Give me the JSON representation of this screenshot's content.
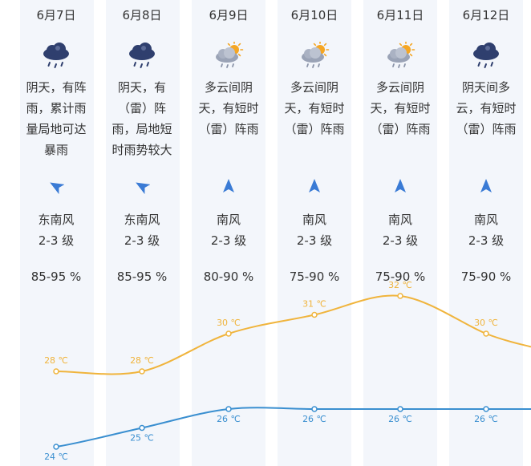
{
  "days": [
    {
      "date": "6月7日",
      "weather_icon": "rain-cloud-icon",
      "desc": "阴天，有阵雨，累计雨量局地可达暴雨",
      "wind_dir_icon": "wind-arrow-southeast-icon",
      "wind_dir": "东南风",
      "wind_level": "2-3 级",
      "humidity": "85-95 %"
    },
    {
      "date": "6月8日",
      "weather_icon": "rain-cloud-icon",
      "desc": "阴天，有（雷）阵雨，局地短时雨势较大",
      "wind_dir_icon": "wind-arrow-southeast-icon",
      "wind_dir": "东南风",
      "wind_level": "2-3 级",
      "humidity": "85-95 %"
    },
    {
      "date": "6月9日",
      "weather_icon": "sun-cloud-rain-icon",
      "desc": "多云间阴天，有短时（雷）阵雨",
      "wind_dir_icon": "wind-arrow-south-icon",
      "wind_dir": "南风",
      "wind_level": "2-3 级",
      "humidity": "80-90 %"
    },
    {
      "date": "6月10日",
      "weather_icon": "sun-cloud-rain-icon",
      "desc": "多云间阴天，有短时（雷）阵雨",
      "wind_dir_icon": "wind-arrow-south-icon",
      "wind_dir": "南风",
      "wind_level": "2-3 级",
      "humidity": "75-90 %"
    },
    {
      "date": "6月11日",
      "weather_icon": "sun-cloud-rain-icon",
      "desc": "多云间阴天，有短时（雷）阵雨",
      "wind_dir_icon": "wind-arrow-south-icon",
      "wind_dir": "南风",
      "wind_level": "2-3 级",
      "humidity": "75-90 %"
    },
    {
      "date": "6月12日",
      "weather_icon": "rain-cloud-icon",
      "desc": "阴天间多云，有短时（雷）阵雨",
      "wind_dir_icon": "wind-arrow-south-icon",
      "wind_dir": "南风",
      "wind_level": "2-3 级",
      "humidity": "75-90 %"
    }
  ],
  "colors": {
    "high": "#f0b43c",
    "low": "#3a8fd0",
    "column_bg": "#f3f6fb",
    "cloud": "#2f3f6e",
    "sun": "#f5a623",
    "arrow": "#3a7bd5"
  },
  "chart_data": {
    "type": "line",
    "categories": [
      "6月7日",
      "6月8日",
      "6月9日",
      "6月10日",
      "6月11日",
      "6月12日"
    ],
    "unit": "℃",
    "series": [
      {
        "values": [
          28,
          28,
          30,
          31,
          32,
          30
        ],
        "labels": [
          "28 ℃",
          "28 ℃",
          "30 ℃",
          "31 ℃",
          "32 ℃",
          "30 ℃"
        ]
      },
      {
        "values": [
          24,
          25,
          26,
          26,
          26,
          26
        ],
        "labels": [
          "24 ℃",
          "25 ℃",
          "26 ℃",
          "26 ℃",
          "26 ℃",
          "26 ℃"
        ]
      }
    ],
    "grid": false
  }
}
